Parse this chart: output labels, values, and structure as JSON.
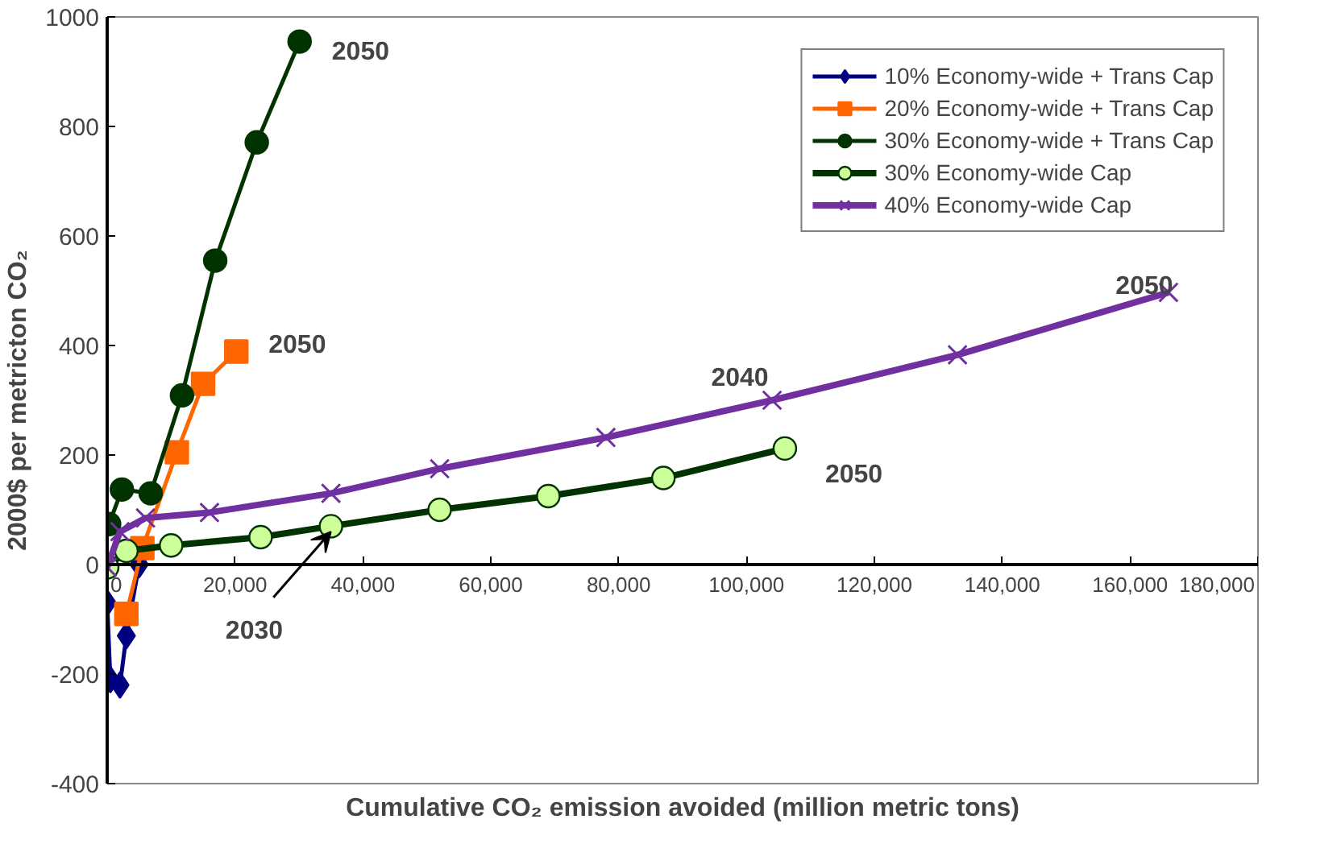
{
  "chart_data": {
    "type": "line",
    "xlabel": "Cumulative CO₂ emission avoided (million metric tons)",
    "ylabel": "2000$ per metricton CO₂",
    "xlim": [
      0,
      180000
    ],
    "ylim": [
      -400,
      1000
    ],
    "xticks": [
      0,
      {
        "value": 20000,
        "label": "20,000"
      },
      {
        "value": 40000,
        "label": "40,000"
      },
      {
        "value": 60000,
        "label": "60,000"
      },
      {
        "value": 80000,
        "label": "80,000"
      },
      {
        "value": 100000,
        "label": "100,000"
      },
      {
        "value": 120000,
        "label": "120,000"
      },
      {
        "value": 140000,
        "label": "140,000"
      },
      {
        "value": 160000,
        "label": "160,000"
      },
      {
        "value": 180000,
        "label": "180,000"
      }
    ],
    "yticks": [
      -400,
      -200,
      0,
      200,
      400,
      600,
      800,
      1000
    ],
    "grid": false,
    "legend": "top right",
    "series": [
      {
        "name": "10% Economy-wide + Trans Cap",
        "color": "#000080",
        "marker": "diamond",
        "x": [
          0,
          500,
          2000,
          3000,
          5000
        ],
        "values": [
          -70,
          -210,
          -220,
          -130,
          0
        ]
      },
      {
        "name": "20% Economy-wide + Trans Cap",
        "color": "#ff6600",
        "marker": "square",
        "x": [
          3000,
          5500,
          10900,
          15000,
          20200
        ],
        "values": [
          -90,
          30,
          205,
          330,
          389
        ]
      },
      {
        "name": "30% Economy-wide + Trans Cap",
        "color": "#003300",
        "marker": "circle",
        "x": [
          300,
          2300,
          6800,
          11700,
          16900,
          23400,
          30100
        ],
        "values": [
          74,
          137,
          130,
          309,
          555,
          771,
          955
        ]
      },
      {
        "name": "30% Economy-wide Cap",
        "color": "#ccff99",
        "marker": "circle",
        "x": [
          0,
          3000,
          10000,
          24000,
          35000,
          52000,
          69000,
          87000,
          106000
        ],
        "values": [
          -5,
          25,
          35,
          50,
          70,
          100,
          125,
          158,
          212
        ]
      },
      {
        "name": "40% Economy-wide Cap",
        "color": "#7030a0",
        "marker": "cross",
        "x": [
          0,
          2000,
          6000,
          16000,
          35000,
          52000,
          78000,
          104000,
          133000,
          166000
        ],
        "values": [
          -5,
          60,
          85,
          95,
          130,
          175,
          232,
          300,
          383,
          497
        ]
      }
    ],
    "annotations": [
      {
        "text": "2050",
        "x": 30100,
        "y": 955
      },
      {
        "text": "2050",
        "x": 20200,
        "y": 389
      },
      {
        "text": "2050",
        "x": 106000,
        "y": 212
      },
      {
        "text": "2040",
        "x": 104000,
        "y": 300
      },
      {
        "text": "2050",
        "x": 166000,
        "y": 497
      },
      {
        "text": "2030",
        "x": 35000,
        "y": 70
      }
    ]
  }
}
